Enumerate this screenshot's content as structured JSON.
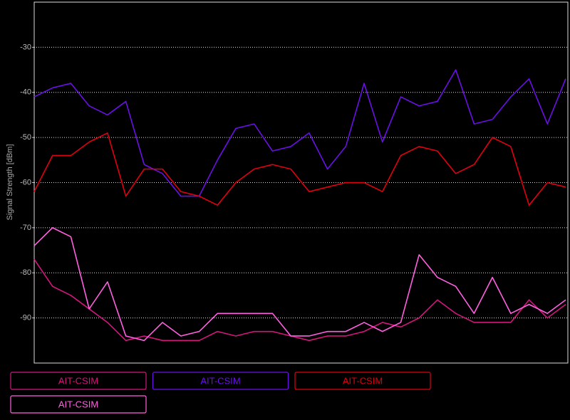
{
  "chart_data": {
    "type": "line",
    "y_label": "Signal Strength [dBm]",
    "categories": [
      null,
      null,
      null,
      null,
      null,
      null,
      null,
      null,
      null,
      null,
      null,
      null,
      null,
      null,
      null,
      null,
      null,
      null,
      null,
      null,
      null,
      null,
      null,
      null,
      null,
      null,
      null,
      null,
      null,
      null
    ],
    "ylim": [
      -100,
      -20
    ],
    "yticks": [
      -30,
      -40,
      -50,
      -60,
      -70,
      -80,
      -90
    ],
    "grid": true,
    "series": [
      {
        "name": "AIT-CSIM",
        "color": "#d4167c",
        "values": [
          -77,
          -83,
          -85,
          -88,
          -91,
          -95,
          -94,
          -95,
          -95,
          -95,
          -93,
          -94,
          -93,
          -93,
          -94,
          -95,
          -94,
          -94,
          -93,
          -91,
          -92,
          -90,
          -86,
          -89,
          -91,
          -91,
          -91,
          -86,
          -90,
          -87
        ]
      },
      {
        "name": "AIT-CSIM",
        "color": "#6a10e6",
        "values": [
          -41,
          -39,
          -38,
          -43,
          -45,
          -42,
          -56,
          -58,
          -63,
          -63,
          -55,
          -48,
          -47,
          -53,
          -52,
          -49,
          -57,
          -52,
          -38,
          -51,
          -41,
          -43,
          -42,
          -35,
          -47,
          -46,
          -41,
          -37,
          -47,
          -37
        ]
      },
      {
        "name": "AIT-CSIM",
        "color": "#e00010",
        "values": [
          -62,
          -54,
          -54,
          -51,
          -49,
          -63,
          -57,
          -57,
          -62,
          -63,
          -65,
          -60,
          -57,
          -56,
          -57,
          -62,
          -61,
          -60,
          -60,
          -62,
          -54,
          -52,
          -53,
          -58,
          -56,
          -50,
          -52,
          -65,
          -60,
          -61
        ]
      },
      {
        "name": "AIT-CSIM",
        "color": "#ff60e0",
        "values": [
          -74,
          -70,
          -72,
          -88,
          -82,
          -94,
          -95,
          -91,
          -94,
          -93,
          -89,
          -89,
          -89,
          -89,
          -94,
          -94,
          -93,
          -93,
          -91,
          -93,
          -91,
          -76,
          -81,
          -83,
          -89,
          -81,
          -89,
          -87,
          -89,
          -86
        ]
      }
    ]
  }
}
